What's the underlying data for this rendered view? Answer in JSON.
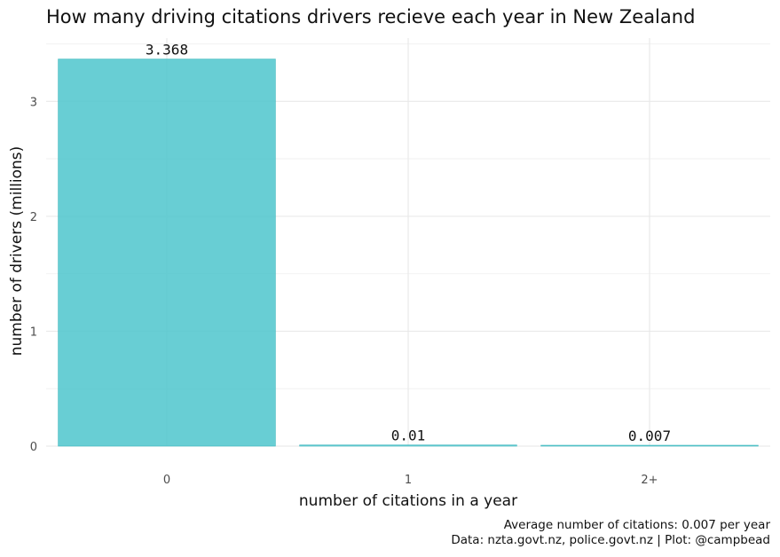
{
  "chart_data": {
    "type": "bar",
    "title": "How many driving citations drivers recieve each year in New Zealand",
    "xlabel": "number of citations in a year",
    "ylabel": "number of drivers (millions)",
    "categories": [
      "0",
      "1",
      "2+"
    ],
    "values": [
      3.368,
      0.01,
      0.007
    ],
    "value_labels": [
      "3.368",
      "0.01",
      "0.007"
    ],
    "ylim": [
      0,
      3.55
    ],
    "yticks": [
      0,
      1,
      2,
      3
    ],
    "ytick_labels": [
      "0",
      "1",
      "2",
      "3"
    ],
    "grid": true,
    "legend": "none",
    "caption": [
      "Average number of citations: 0.007 per year",
      "Data: nzta.govt.nz, police.govt.nz | Plot: @campbead"
    ],
    "colors": {
      "bar": "#4ec5cc",
      "bar_outline": "#3fb8bf"
    }
  }
}
